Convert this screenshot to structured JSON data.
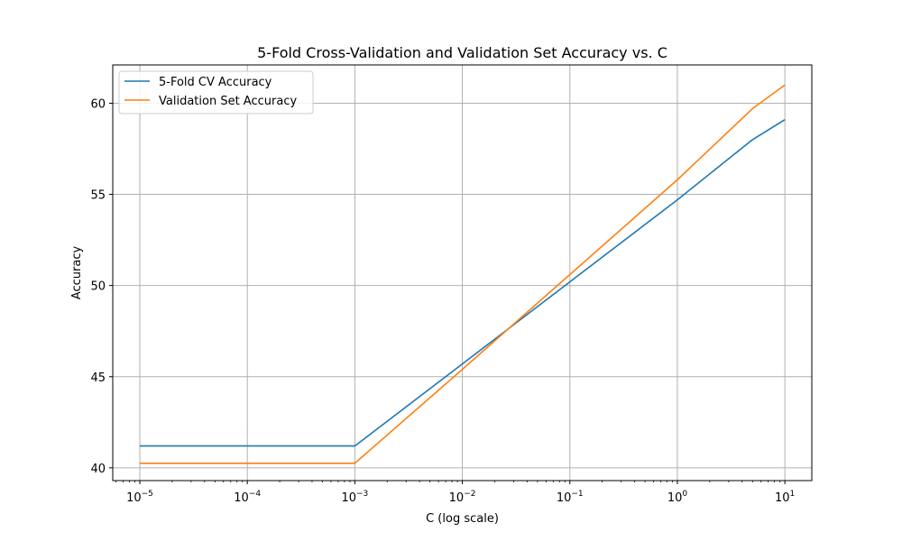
{
  "chart_data": {
    "type": "line",
    "title": "5-Fold Cross-Validation and Validation Set Accuracy vs. C",
    "xlabel": "C (log scale)",
    "ylabel": "Accuracy",
    "xscale": "log",
    "xlim": [
      5.6e-06,
      17.8
    ],
    "ylim": [
      39.3,
      62.1
    ],
    "grid": true,
    "legend_position": "top-left",
    "x": [
      1e-05,
      0.0001,
      0.001,
      0.01,
      0.1,
      1,
      5,
      10
    ],
    "xticks": [
      {
        "base": "10",
        "exp": "−5",
        "value": 1e-05
      },
      {
        "base": "10",
        "exp": "−4",
        "value": 0.0001
      },
      {
        "base": "10",
        "exp": "−3",
        "value": 0.001
      },
      {
        "base": "10",
        "exp": "−2",
        "value": 0.01
      },
      {
        "base": "10",
        "exp": "−1",
        "value": 0.1
      },
      {
        "base": "10",
        "exp": "0",
        "value": 1
      },
      {
        "base": "10",
        "exp": "1",
        "value": 10
      }
    ],
    "yticks": [
      "40",
      "45",
      "50",
      "55",
      "60"
    ],
    "series": [
      {
        "name": "5-Fold CV Accuracy",
        "color": "#1f77b4",
        "values": [
          41.2,
          41.2,
          41.2,
          45.7,
          50.2,
          54.7,
          58.0,
          59.1
        ]
      },
      {
        "name": "Validation Set Accuracy",
        "color": "#ff7f0e",
        "values": [
          40.25,
          40.25,
          40.25,
          45.4,
          50.6,
          55.8,
          59.7,
          61.0
        ]
      }
    ]
  }
}
